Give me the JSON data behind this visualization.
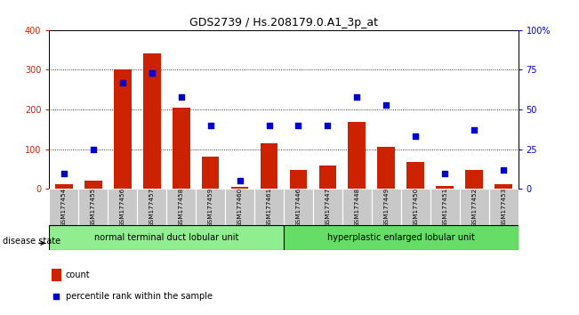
{
  "title": "GDS2739 / Hs.208179.0.A1_3p_at",
  "samples": [
    "GSM177454",
    "GSM177455",
    "GSM177456",
    "GSM177457",
    "GSM177458",
    "GSM177459",
    "GSM177460",
    "GSM177461",
    "GSM177446",
    "GSM177447",
    "GSM177448",
    "GSM177449",
    "GSM177450",
    "GSM177451",
    "GSM177452",
    "GSM177453"
  ],
  "counts": [
    12,
    20,
    300,
    340,
    205,
    82,
    5,
    115,
    48,
    60,
    168,
    105,
    68,
    8,
    47,
    12
  ],
  "percentiles": [
    10,
    25,
    67,
    73,
    58,
    40,
    5,
    40,
    40,
    40,
    58,
    53,
    33,
    10,
    37,
    12
  ],
  "group1_label": "normal terminal duct lobular unit",
  "group2_label": "hyperplastic enlarged lobular unit",
  "group1_count": 8,
  "group2_count": 8,
  "bar_color": "#cc2200",
  "scatter_color": "#0000cc",
  "ylim_left": [
    0,
    400
  ],
  "ylim_right": [
    0,
    100
  ],
  "yticks_left": [
    0,
    100,
    200,
    300,
    400
  ],
  "yticks_right": [
    0,
    25,
    50,
    75,
    100
  ],
  "ytick_labels_right": [
    "0",
    "25",
    "50",
    "75",
    "100%"
  ],
  "disease_state_label": "disease state",
  "legend_count_label": "count",
  "legend_pct_label": "percentile rank within the sample",
  "group1_color": "#90ee90",
  "group2_color": "#66dd66",
  "tick_bg_color": "#c8c8c8",
  "title_fontsize": 9
}
